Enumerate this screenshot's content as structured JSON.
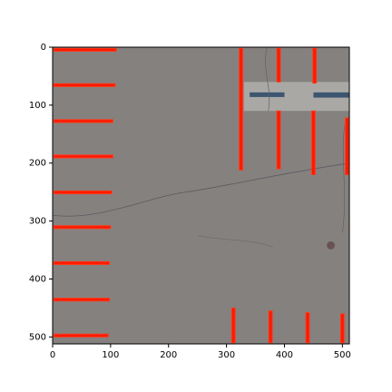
{
  "chart_data": {
    "type": "image",
    "xlim": [
      0,
      512
    ],
    "ylim": [
      512,
      0
    ],
    "xticks": [
      0,
      100,
      200,
      300,
      400,
      500
    ],
    "yticks": [
      0,
      100,
      200,
      300,
      400,
      500
    ]
  }
}
